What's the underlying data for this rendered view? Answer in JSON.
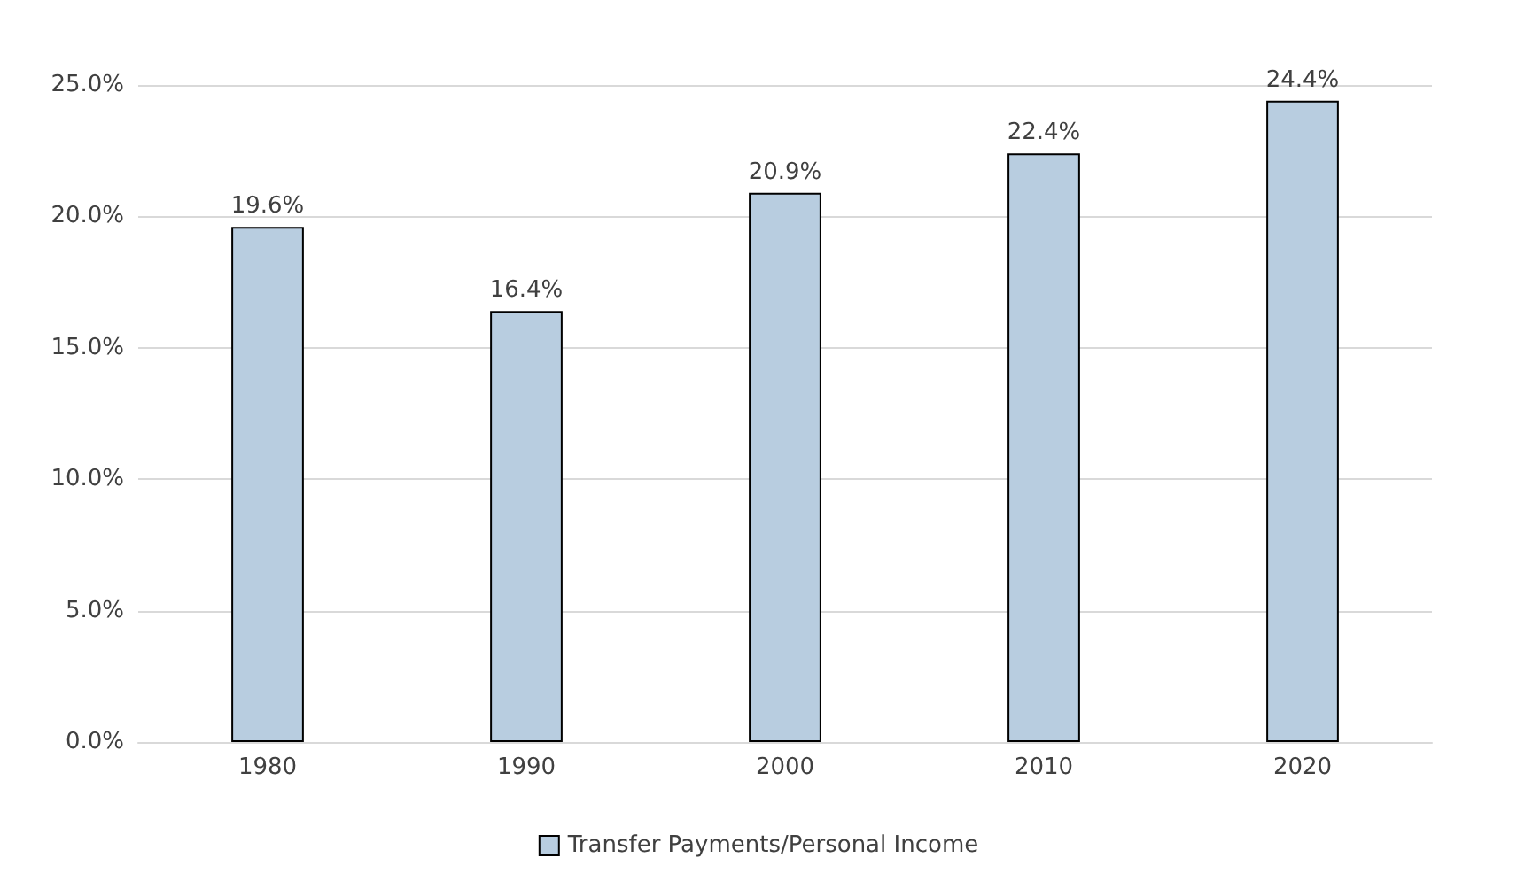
{
  "chart_data": {
    "type": "bar",
    "categories": [
      "1980",
      "1990",
      "2000",
      "2010",
      "2020"
    ],
    "series": [
      {
        "name": "Transfer Payments/Personal Income",
        "color": "#b8cde0",
        "values": [
          19.6,
          16.4,
          20.9,
          22.4,
          24.4
        ],
        "value_labels": [
          "19.6%",
          "16.4%",
          "20.9%",
          "22.4%",
          "24.4%"
        ]
      }
    ],
    "ylim": [
      0,
      25
    ],
    "yticks": [
      {
        "value": 0,
        "label": "0.0%"
      },
      {
        "value": 5,
        "label": "5.0%"
      },
      {
        "value": 10,
        "label": "10.0%"
      },
      {
        "value": 15,
        "label": "15.0%"
      },
      {
        "value": 20,
        "label": "20.0%"
      },
      {
        "value": 25,
        "label": "25.0%"
      }
    ],
    "grid": "y",
    "legend": "bottom"
  }
}
